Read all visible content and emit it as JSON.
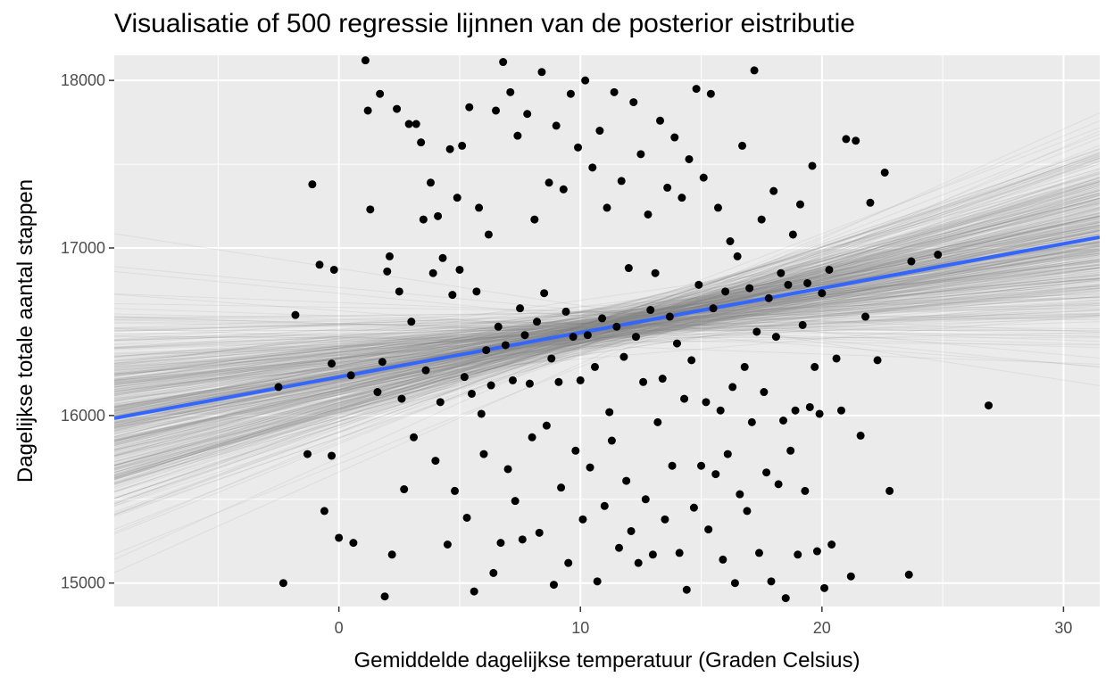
{
  "chart_data": {
    "type": "scatter",
    "title": "Visualisatie of 500 regressie lijnnen van de posterior eistributie",
    "xlabel": "Gemiddelde dagelijkse temperatuur (Graden Celsius)",
    "ylabel": "Dagelijkse totale aantal stappen",
    "xlim": [
      -9.3,
      31.5
    ],
    "ylim": [
      14860,
      18150
    ],
    "x_ticks": [
      0,
      10,
      20,
      30
    ],
    "y_ticks": [
      15000,
      16000,
      17000,
      18000
    ],
    "x_tick_labels": [
      "0",
      "10",
      "20",
      "30"
    ],
    "y_tick_labels": [
      "15000",
      "16000",
      "17000",
      "18000"
    ],
    "grid": true,
    "panel_background": "#ebebeb",
    "fit_line": {
      "intercept": 16230,
      "slope": 26.5,
      "color": "#3366ff"
    },
    "posterior_lines": {
      "count": 500,
      "intercept_mean": 16230,
      "intercept_sd": 55,
      "slope_mean": 26.5,
      "slope_sd": 14,
      "color": "#808080"
    },
    "points": [
      [
        -2.5,
        16170
      ],
      [
        -2.3,
        15000
      ],
      [
        -1.8,
        16600
      ],
      [
        -1.3,
        15770
      ],
      [
        -1.1,
        17380
      ],
      [
        -0.8,
        16900
      ],
      [
        -0.6,
        15430
      ],
      [
        -0.3,
        16310
      ],
      [
        -0.3,
        15760
      ],
      [
        -0.2,
        16870
      ],
      [
        0,
        15270
      ],
      [
        0.5,
        16240
      ],
      [
        0.6,
        15240
      ],
      [
        1.1,
        18120
      ],
      [
        1.2,
        17820
      ],
      [
        1.3,
        17230
      ],
      [
        1.6,
        16140
      ],
      [
        1.7,
        17920
      ],
      [
        1.8,
        16320
      ],
      [
        1.9,
        14920
      ],
      [
        2.0,
        16860
      ],
      [
        2.1,
        16950
      ],
      [
        2.2,
        15170
      ],
      [
        2.4,
        17830
      ],
      [
        2.5,
        16740
      ],
      [
        2.6,
        16100
      ],
      [
        2.7,
        15560
      ],
      [
        2.9,
        17740
      ],
      [
        3.0,
        16560
      ],
      [
        3.1,
        15870
      ],
      [
        3.2,
        17740
      ],
      [
        3.4,
        17630
      ],
      [
        3.5,
        17170
      ],
      [
        3.6,
        16270
      ],
      [
        3.8,
        17390
      ],
      [
        3.9,
        16850
      ],
      [
        4.0,
        15730
      ],
      [
        4.1,
        17190
      ],
      [
        4.2,
        16080
      ],
      [
        4.3,
        16940
      ],
      [
        4.5,
        15230
      ],
      [
        4.6,
        17590
      ],
      [
        4.7,
        16720
      ],
      [
        4.8,
        15550
      ],
      [
        4.9,
        17300
      ],
      [
        5.0,
        16870
      ],
      [
        5.1,
        17610
      ],
      [
        5.2,
        16230
      ],
      [
        5.3,
        15390
      ],
      [
        5.4,
        17840
      ],
      [
        5.5,
        16130
      ],
      [
        5.6,
        14950
      ],
      [
        5.7,
        16740
      ],
      [
        5.8,
        17240
      ],
      [
        5.9,
        16010
      ],
      [
        6.0,
        15770
      ],
      [
        6.1,
        16390
      ],
      [
        6.2,
        17080
      ],
      [
        6.3,
        16180
      ],
      [
        6.4,
        15060
      ],
      [
        6.5,
        17820
      ],
      [
        6.6,
        16530
      ],
      [
        6.7,
        15240
      ],
      [
        6.8,
        18110
      ],
      [
        6.9,
        16420
      ],
      [
        7.0,
        15680
      ],
      [
        7.1,
        17930
      ],
      [
        7.2,
        16210
      ],
      [
        7.3,
        15490
      ],
      [
        7.4,
        17670
      ],
      [
        7.5,
        16640
      ],
      [
        7.6,
        15260
      ],
      [
        7.7,
        16480
      ],
      [
        7.8,
        17800
      ],
      [
        7.9,
        16190
      ],
      [
        8.0,
        15870
      ],
      [
        8.1,
        17170
      ],
      [
        8.2,
        16560
      ],
      [
        8.3,
        15300
      ],
      [
        8.4,
        18050
      ],
      [
        8.5,
        16730
      ],
      [
        8.6,
        15940
      ],
      [
        8.7,
        17390
      ],
      [
        8.8,
        16340
      ],
      [
        8.9,
        14990
      ],
      [
        9.0,
        17730
      ],
      [
        9.1,
        16200
      ],
      [
        9.2,
        15570
      ],
      [
        9.3,
        17350
      ],
      [
        9.4,
        16620
      ],
      [
        9.5,
        15120
      ],
      [
        9.6,
        17920
      ],
      [
        9.7,
        16470
      ],
      [
        9.8,
        15790
      ],
      [
        9.9,
        17600
      ],
      [
        10.0,
        16210
      ],
      [
        10.1,
        15380
      ],
      [
        10.2,
        18000
      ],
      [
        10.3,
        16480
      ],
      [
        10.4,
        15690
      ],
      [
        10.5,
        17480
      ],
      [
        10.6,
        16290
      ],
      [
        10.7,
        15010
      ],
      [
        10.8,
        17700
      ],
      [
        10.9,
        16580
      ],
      [
        11.0,
        15460
      ],
      [
        11.1,
        17240
      ],
      [
        11.2,
        16020
      ],
      [
        11.3,
        15850
      ],
      [
        11.4,
        17930
      ],
      [
        11.5,
        16530
      ],
      [
        11.6,
        15210
      ],
      [
        11.7,
        17400
      ],
      [
        11.8,
        16350
      ],
      [
        11.9,
        15610
      ],
      [
        12.0,
        16880
      ],
      [
        12.1,
        15310
      ],
      [
        12.2,
        17870
      ],
      [
        12.3,
        16470
      ],
      [
        12.4,
        15120
      ],
      [
        12.5,
        17560
      ],
      [
        12.6,
        16200
      ],
      [
        12.7,
        15500
      ],
      [
        12.8,
        17200
      ],
      [
        12.9,
        16630
      ],
      [
        13.0,
        15170
      ],
      [
        13.1,
        16850
      ],
      [
        13.2,
        15960
      ],
      [
        13.3,
        17760
      ],
      [
        13.4,
        16220
      ],
      [
        13.5,
        15380
      ],
      [
        13.6,
        17360
      ],
      [
        13.7,
        16590
      ],
      [
        13.8,
        15700
      ],
      [
        13.9,
        17660
      ],
      [
        14.0,
        16430
      ],
      [
        14.1,
        15180
      ],
      [
        14.2,
        17300
      ],
      [
        14.3,
        16100
      ],
      [
        14.4,
        14960
      ],
      [
        14.5,
        17530
      ],
      [
        14.6,
        16330
      ],
      [
        14.7,
        15450
      ],
      [
        14.8,
        17950
      ],
      [
        14.9,
        16780
      ],
      [
        15.0,
        15700
      ],
      [
        15.1,
        17420
      ],
      [
        15.2,
        16080
      ],
      [
        15.3,
        15320
      ],
      [
        15.4,
        17920
      ],
      [
        15.5,
        16640
      ],
      [
        15.6,
        15650
      ],
      [
        15.7,
        17240
      ],
      [
        15.8,
        16030
      ],
      [
        15.9,
        15140
      ],
      [
        16.0,
        16740
      ],
      [
        16.1,
        15770
      ],
      [
        16.2,
        17040
      ],
      [
        16.3,
        16170
      ],
      [
        16.4,
        15000
      ],
      [
        16.5,
        16950
      ],
      [
        16.6,
        15530
      ],
      [
        16.7,
        17610
      ],
      [
        16.8,
        16290
      ],
      [
        16.9,
        15430
      ],
      [
        17.0,
        16760
      ],
      [
        17.1,
        15960
      ],
      [
        17.2,
        18060
      ],
      [
        17.3,
        16500
      ],
      [
        17.4,
        15180
      ],
      [
        17.5,
        17170
      ],
      [
        17.6,
        16140
      ],
      [
        17.7,
        15660
      ],
      [
        17.8,
        16700
      ],
      [
        17.9,
        15010
      ],
      [
        18.0,
        17340
      ],
      [
        18.1,
        16470
      ],
      [
        18.2,
        15590
      ],
      [
        18.3,
        16850
      ],
      [
        18.4,
        15970
      ],
      [
        18.5,
        14910
      ],
      [
        18.6,
        16780
      ],
      [
        18.7,
        15790
      ],
      [
        18.8,
        17080
      ],
      [
        18.9,
        16030
      ],
      [
        19.0,
        15170
      ],
      [
        19.1,
        17260
      ],
      [
        19.2,
        16540
      ],
      [
        19.3,
        15550
      ],
      [
        19.4,
        16790
      ],
      [
        19.5,
        16050
      ],
      [
        19.6,
        17490
      ],
      [
        19.7,
        16290
      ],
      [
        19.8,
        15190
      ],
      [
        19.9,
        16010
      ],
      [
        20.0,
        16730
      ],
      [
        20.1,
        14970
      ],
      [
        20.3,
        16870
      ],
      [
        20.4,
        15230
      ],
      [
        20.6,
        16340
      ],
      [
        20.8,
        16030
      ],
      [
        21.0,
        17650
      ],
      [
        21.2,
        15040
      ],
      [
        21.4,
        17640
      ],
      [
        21.6,
        15880
      ],
      [
        21.8,
        16590
      ],
      [
        22.0,
        17270
      ],
      [
        22.3,
        16330
      ],
      [
        22.6,
        17450
      ],
      [
        22.8,
        15550
      ],
      [
        23.6,
        15050
      ],
      [
        23.7,
        16920
      ],
      [
        24.8,
        16960
      ],
      [
        26.9,
        16060
      ]
    ]
  }
}
